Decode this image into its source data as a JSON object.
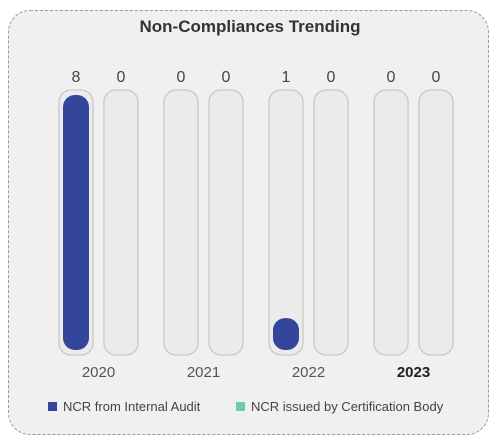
{
  "chart_data": {
    "type": "bar",
    "title": "Non-Compliances Trending",
    "categories": [
      "2020",
      "2021",
      "2022",
      "2023"
    ],
    "highlighted_category": "2023",
    "series": [
      {
        "name": "NCR from Internal Audit",
        "color": "#34469b",
        "values": [
          8,
          0,
          1,
          0
        ]
      },
      {
        "name": "NCR issued by Certification Body",
        "color": "#6cc9b6",
        "values": [
          0,
          0,
          0,
          0
        ]
      }
    ],
    "ylim": [
      0,
      8
    ],
    "grid": false,
    "legend_position": "bottom"
  }
}
